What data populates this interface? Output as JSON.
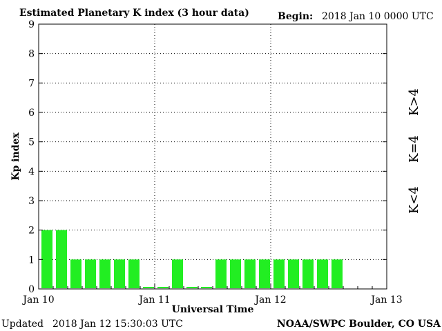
{
  "header": {
    "title": "Estimated Planetary K index (3 hour data)",
    "begin_label": "Begin:",
    "begin_value": "2018 Jan 10 0000 UTC"
  },
  "footer": {
    "updated_label": "Updated",
    "updated_value": "2018 Jan 12 15:30:03 UTC",
    "credit": "NOAA/SWPC Boulder, CO USA"
  },
  "legend": {
    "items": [
      {
        "label": "K<4",
        "color": "#22ee22"
      },
      {
        "label": "K=4",
        "color": "#ffcc00"
      },
      {
        "label": "K>4",
        "color": "#ff3300"
      }
    ]
  },
  "chart_data": {
    "type": "bar",
    "title": "Estimated Planetary K index (3 hour data)",
    "xlabel": "Universal Time",
    "ylabel": "Kp index",
    "ylim": [
      0,
      9
    ],
    "yticks": [
      0,
      1,
      2,
      3,
      4,
      5,
      6,
      7,
      8,
      9
    ],
    "x_tick_labels": [
      "Jan 10",
      "Jan 11",
      "Jan 12",
      "Jan 13"
    ],
    "slots_per_day": 8,
    "days": 3,
    "values": [
      2,
      2,
      1,
      1,
      1,
      1,
      1,
      0.07,
      0.07,
      1,
      0.07,
      0.07,
      1,
      1,
      1,
      1,
      1,
      1,
      1,
      1,
      1
    ],
    "bar_color": "#22ee22",
    "grid": "dotted"
  }
}
